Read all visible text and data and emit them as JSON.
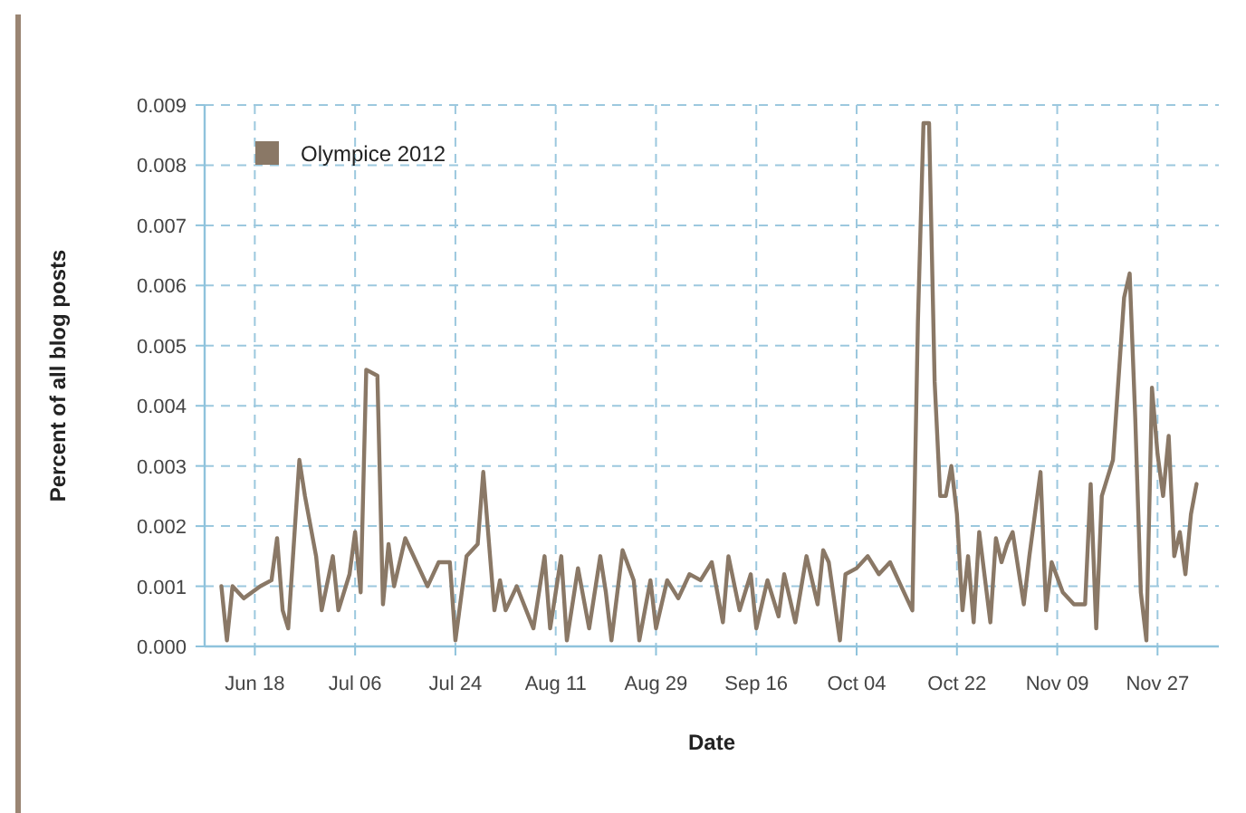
{
  "chart_data": {
    "type": "line",
    "xlabel": "Date",
    "ylabel": "Percent of all blog posts",
    "legend": "top left",
    "grid": true,
    "line_style": "solid",
    "marker": "none",
    "xlim": [
      "--06-09",
      "--12-08"
    ],
    "xticks": [
      {
        "value": "--06-18",
        "label": "Jun 18"
      },
      {
        "value": "--07-06",
        "label": "Jul 06"
      },
      {
        "value": "--07-24",
        "label": "Jul 24"
      },
      {
        "value": "--08-11",
        "label": "Aug 11"
      },
      {
        "value": "--08-29",
        "label": "Aug 29"
      },
      {
        "value": "--09-16",
        "label": "Sep 16"
      },
      {
        "value": "--10-04",
        "label": "Oct 04"
      },
      {
        "value": "--10-22",
        "label": "Oct 22"
      },
      {
        "value": "--11-09",
        "label": "Nov 09"
      },
      {
        "value": "--11-27",
        "label": "Nov 27"
      }
    ],
    "ylim": [
      0,
      0.009
    ],
    "yticks": [
      {
        "value": 0,
        "label": "0.000"
      },
      {
        "value": 0.001,
        "label": "0.001"
      },
      {
        "value": 0.002,
        "label": "0.002"
      },
      {
        "value": 0.003,
        "label": "0.003"
      },
      {
        "value": 0.004,
        "label": "0.004"
      },
      {
        "value": 0.005,
        "label": "0.005"
      },
      {
        "value": 0.006,
        "label": "0.006"
      },
      {
        "value": 0.007,
        "label": "0.007"
      },
      {
        "value": 0.008,
        "label": "0.008"
      },
      {
        "value": 0.009,
        "label": "0.009"
      }
    ],
    "x": [
      "--06-12",
      "--06-13",
      "--06-14",
      "--06-16",
      "--06-19",
      "--06-21",
      "--06-22",
      "--06-23",
      "--06-24",
      "--06-26",
      "--06-27",
      "--06-29",
      "--06-30",
      "--07-02",
      "--07-03",
      "--07-05",
      "--07-06",
      "--07-07",
      "--07-08",
      "--07-10",
      "--07-11",
      "--07-12",
      "--07-13",
      "--07-15",
      "--07-17",
      "--07-19",
      "--07-21",
      "--07-23",
      "--07-24",
      "--07-26",
      "--07-28",
      "--07-29",
      "--07-31",
      "--08-01",
      "--08-02",
      "--08-04",
      "--08-07",
      "--08-09",
      "--08-10",
      "--08-12",
      "--08-13",
      "--08-15",
      "--08-17",
      "--08-19",
      "--08-20",
      "--08-21",
      "--08-23",
      "--08-25",
      "--08-26",
      "--08-28",
      "--08-29",
      "--08-31",
      "--09-02",
      "--09-04",
      "--09-06",
      "--09-08",
      "--09-10",
      "--09-11",
      "--09-13",
      "--09-15",
      "--09-16",
      "--09-18",
      "--09-20",
      "--09-21",
      "--09-23",
      "--09-25",
      "--09-27",
      "--09-28",
      "--09-29",
      "--10-01",
      "--10-02",
      "--10-04",
      "--10-06",
      "--10-08",
      "--10-10",
      "--10-11",
      "--10-12",
      "--10-14",
      "--10-15",
      "--10-16",
      "--10-17",
      "--10-18",
      "--10-19",
      "--10-20",
      "--10-21",
      "--10-22",
      "--10-23",
      "--10-24",
      "--10-25",
      "--10-26",
      "--10-28",
      "--10-29",
      "--10-30",
      "--10-31",
      "--11-01",
      "--11-03",
      "--11-04",
      "--11-06",
      "--11-07",
      "--11-08",
      "--11-10",
      "--11-12",
      "--11-14",
      "--11-15",
      "--11-16",
      "--11-17",
      "--11-18",
      "--11-19",
      "--11-21",
      "--11-22",
      "--11-23",
      "--11-24",
      "--11-25",
      "--11-26",
      "--11-27",
      "--11-28",
      "--11-29",
      "--11-30",
      "--12-01",
      "--12-02",
      "--12-03",
      "--12-04"
    ],
    "series": [
      {
        "name": "Olympice 2012",
        "color": "#8a7866",
        "values": [
          0.001,
          0.0001,
          0.001,
          0.0008,
          0.001,
          0.0011,
          0.0018,
          0.0006,
          0.0003,
          0.0031,
          0.0025,
          0.0015,
          0.0006,
          0.0015,
          0.0006,
          0.0012,
          0.0019,
          0.0009,
          0.0046,
          0.0045,
          0.0007,
          0.0017,
          0.001,
          0.0018,
          0.0014,
          0.001,
          0.0014,
          0.0014,
          0.0001,
          0.0015,
          0.0017,
          0.0029,
          0.0006,
          0.0011,
          0.0006,
          0.001,
          0.0003,
          0.0015,
          0.0003,
          0.0015,
          0.0001,
          0.0013,
          0.0003,
          0.0015,
          0.0009,
          0.0001,
          0.0016,
          0.0011,
          0.0001,
          0.0011,
          0.0003,
          0.0011,
          0.0008,
          0.0012,
          0.0011,
          0.0014,
          0.0004,
          0.0015,
          0.0006,
          0.0012,
          0.0003,
          0.0011,
          0.0005,
          0.0012,
          0.0004,
          0.0015,
          0.0007,
          0.0016,
          0.0014,
          0.0001,
          0.0012,
          0.0013,
          0.0015,
          0.0012,
          0.0014,
          0.0012,
          0.001,
          0.0006,
          0.0054,
          0.0087,
          0.0087,
          0.0044,
          0.0025,
          0.0025,
          0.003,
          0.0022,
          0.0006,
          0.0015,
          0.0004,
          0.0019,
          0.0004,
          0.0018,
          0.0014,
          0.0017,
          0.0019,
          0.0007,
          0.0015,
          0.0029,
          0.0006,
          0.0014,
          0.0009,
          0.0007,
          0.0007,
          0.0027,
          0.0003,
          0.0025,
          0.0028,
          0.0031,
          0.0058,
          0.0062,
          0.0038,
          0.0009,
          0.0001,
          0.0043,
          0.0032,
          0.0025,
          0.0035,
          0.0015,
          0.0019,
          0.0012,
          0.0022,
          0.0027
        ]
      }
    ]
  }
}
